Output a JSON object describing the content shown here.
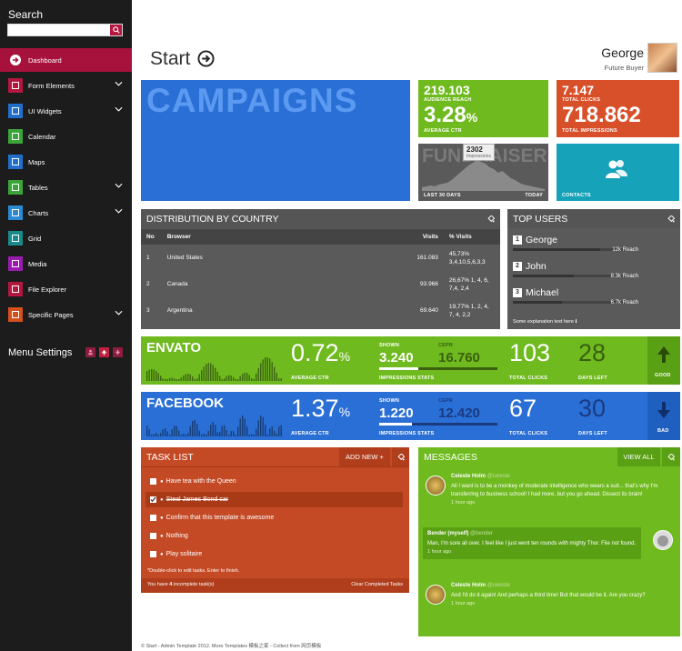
{
  "sidebar": {
    "search_label": "Search",
    "items": [
      {
        "label": "Dashboard",
        "icon": "arrow-icon",
        "color": "#ffffff",
        "has_chevron": false
      },
      {
        "label": "Form Elements",
        "icon": "form-icon",
        "color": "#b3173f",
        "has_chevron": true
      },
      {
        "label": "UI Widgets",
        "icon": "cube-icon",
        "color": "#1f6fcb",
        "has_chevron": true
      },
      {
        "label": "Calendar",
        "icon": "calendar-icon",
        "color": "#3aa63a",
        "has_chevron": false
      },
      {
        "label": "Maps",
        "icon": "map-icon",
        "color": "#1f6fcb",
        "has_chevron": false
      },
      {
        "label": "Tables",
        "icon": "table-icon",
        "color": "#3aa63a",
        "has_chevron": true
      },
      {
        "label": "Charts",
        "icon": "chart-icon",
        "color": "#2a8ad4",
        "has_chevron": true
      },
      {
        "label": "Grid",
        "icon": "grid-icon",
        "color": "#1a8a8a",
        "has_chevron": false
      },
      {
        "label": "Media",
        "icon": "camera-icon",
        "color": "#9b1bb0",
        "has_chevron": false
      },
      {
        "label": "File Explorer",
        "icon": "folder-icon",
        "color": "#b3173f",
        "has_chevron": false
      },
      {
        "label": "Specific Pages",
        "icon": "pages-icon",
        "color": "#d4501c",
        "has_chevron": true
      }
    ],
    "menu_settings": "Menu Settings"
  },
  "header": {
    "title": "Start",
    "user_name": "George",
    "user_role": "Future Buyer"
  },
  "tiles": {
    "campaigns": "CAMPAIGNS",
    "audience_value": "219.103",
    "audience_label": "AUDIENCE REACH",
    "ctr_value": "3.28",
    "ctr_unit": "%",
    "ctr_label": "AVERAGE CTR",
    "clicks_value": "7.147",
    "clicks_label": "TOTAL CLICKS",
    "impressions_value": "718.862",
    "impressions_label": "TOTAL IMPRESSIONS",
    "fundraisers_bg": "FUNDRAISERS",
    "fund_tooltip_value": "2302",
    "fund_tooltip_label": "Impressions",
    "fund_left": "LAST 30 DAYS",
    "fund_right": "TODAY",
    "contacts_label": "CONTACTS"
  },
  "distribution": {
    "title": "DISTRIBUTION BY COUNTRY",
    "headers": [
      "No",
      "Browser",
      "Visits",
      "% Visits"
    ],
    "rows": [
      {
        "no": "1",
        "browser": "United States",
        "visits": "161.083",
        "pct": "45,73% 3,4,10,5,6,3,3"
      },
      {
        "no": "2",
        "browser": "Canada",
        "visits": "93.966",
        "pct": "26,67% 1, 4, 6, 7,4, 2,4"
      },
      {
        "no": "3",
        "browser": "Argentina",
        "visits": "69.640",
        "pct": "19,77% 1, 2, 4, 7, 4, 2,2"
      }
    ]
  },
  "top_users": {
    "title": "TOP USERS",
    "users": [
      {
        "rank": "1",
        "name": "George",
        "reach": "12k Reach",
        "fill": 0.75
      },
      {
        "rank": "2",
        "name": "John",
        "reach": "8.3k Reach",
        "fill": 0.52
      },
      {
        "rank": "3",
        "name": "Michael",
        "reach": "6.7k Reach",
        "fill": 0.42
      }
    ],
    "footer": "Some explanation text here"
  },
  "envato": {
    "name": "ENVATO",
    "ctr": "0.72",
    "ctr_unit": "%",
    "ctr_label": "AVERAGE CTR",
    "shown_label": "SHOWN",
    "shown_value": "3.240",
    "target_label": "CEPR",
    "target_value": "16.760",
    "impr_label": "IMPRESSIONS STATS",
    "clicks": "103",
    "clicks_label": "TOTAL CLICKS",
    "days": "28",
    "days_label": "DAYS LEFT",
    "status": "GOOD"
  },
  "facebook": {
    "name": "FACEBOOK",
    "ctr": "1.37",
    "ctr_unit": "%",
    "ctr_label": "AVERAGE CTR",
    "shown_label": "SHOWN",
    "shown_value": "1.220",
    "target_label": "CEPR",
    "target_value": "12.420",
    "impr_label": "IMPRESSIONS STATS",
    "clicks": "67",
    "clicks_label": "TOTAL CLICKS",
    "days": "30",
    "days_label": "DAYS LEFT",
    "status": "BAD"
  },
  "tasks": {
    "title": "TASK LIST",
    "add_label": "ADD NEW +",
    "items": [
      {
        "label": "Have tea with the Queen",
        "done": false
      },
      {
        "label": "Steal James Bond car",
        "done": true
      },
      {
        "label": "Confirm that this template is awesome",
        "done": false
      },
      {
        "label": "Nothing",
        "done": false
      },
      {
        "label": "Play solitaire",
        "done": false
      }
    ],
    "hint": "*Double-click to edit tasks. Enter to finish.",
    "footer_left_prefix": "You have ",
    "incomplete_count": "4",
    "footer_left_suffix": " incomplete task(s)",
    "clear_label": "Clear Completed Tasks"
  },
  "messages": {
    "title": "MESSAGES",
    "view_all": "VIEW ALL",
    "items": [
      {
        "author": "Celeste Holm",
        "handle": "@celeste",
        "text": "All I want is to be a monkey of moderate intelligence who wears a suit... that's why I'm transferring to business school! I had more, but you go ahead. Dissect its brain!",
        "time": "1 hour ago",
        "side": "left"
      },
      {
        "author": "Bender (myself)",
        "handle": "@bender",
        "text": "Man, I'm sore all over. I feel like I just went ten rounds with mighty Thor. File not found.",
        "time": "1 hour ago",
        "side": "right"
      },
      {
        "author": "Celeste Holm",
        "handle": "@celeste",
        "text": "And I'd do it again! And perhaps a third time! But that would be it. Are you crazy?",
        "time": "1 hour ago",
        "side": "left"
      }
    ]
  },
  "footer": "© Start - Admin Template 2012. More Templates 模板之家 - Collect from 网页模板",
  "colors": {
    "blue": "#2a6fd6",
    "green": "#6fba1f",
    "orange": "#d8502a",
    "teal": "#16a2b8",
    "grey": "#555555",
    "red": "#a6123c"
  }
}
